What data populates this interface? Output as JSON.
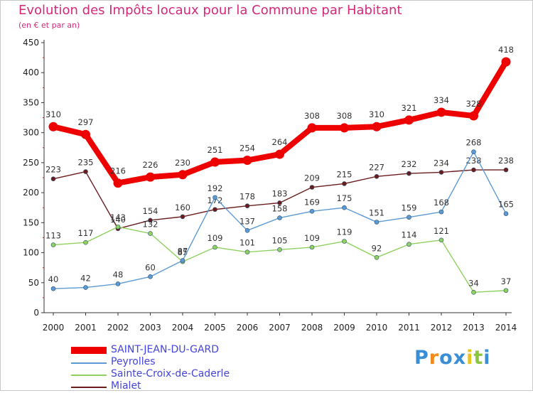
{
  "chart_data": {
    "type": "line",
    "title": "Evolution des Impôts locaux pour la Commune par Habitant",
    "subtitle": "(en € et par an)",
    "xlabel": "",
    "ylabel": "",
    "ylim": [
      0,
      450
    ],
    "yticks": [
      "0",
      "50",
      "100",
      "150",
      "200",
      "250",
      "300",
      "350",
      "400",
      "450"
    ],
    "x": [
      "2000",
      "2001",
      "2002",
      "2003",
      "2004",
      "2005",
      "2006",
      "2007",
      "2008",
      "2009",
      "2010",
      "2011",
      "2012",
      "2013",
      "2014"
    ],
    "series": [
      {
        "name": "Mialet",
        "color": "#6b1d1d",
        "values": [
          223,
          235,
          140,
          154,
          160,
          172,
          178,
          183,
          209,
          215,
          227,
          232,
          234,
          238,
          238
        ]
      },
      {
        "name": "Sainte-Croix-de-Caderle",
        "color": "#8fd160",
        "values": [
          113,
          117,
          143,
          132,
          85,
          109,
          101,
          105,
          109,
          119,
          92,
          114,
          121,
          34,
          37
        ]
      },
      {
        "name": "Peyrolles",
        "color": "#5c9ad3",
        "values": [
          40,
          42,
          48,
          60,
          87,
          192,
          137,
          158,
          169,
          175,
          151,
          159,
          168,
          268,
          165
        ]
      },
      {
        "name": "SAINT-JEAN-DU-GARD",
        "color": "#ee0000",
        "values": [
          310,
          297,
          216,
          226,
          230,
          251,
          254,
          264,
          308,
          308,
          310,
          321,
          334,
          328,
          418
        ]
      }
    ],
    "legend": [
      "SAINT-JEAN-DU-GARD",
      "Peyrolles",
      "Sainte-Croix-de-Caderle",
      "Mialet"
    ],
    "legend_position": "bottom-left",
    "grid": false
  },
  "legend_color": "#4444dd",
  "logo": {
    "letters": [
      "P",
      "r",
      "o",
      "x",
      "i",
      "t",
      "i"
    ],
    "colors": [
      "#3a8ed6",
      "#f08a1c",
      "#3a8ed6",
      "#3a8ed6",
      "#e8c51c",
      "#8cc63f",
      "#3a8ed6"
    ]
  }
}
